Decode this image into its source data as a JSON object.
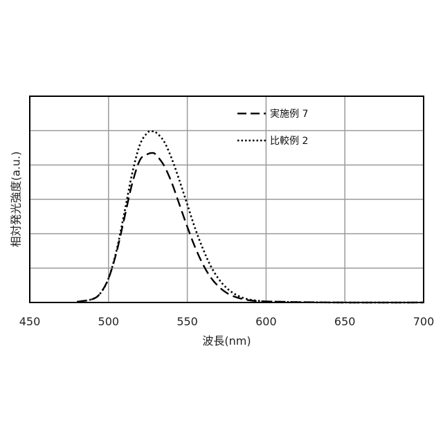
{
  "chart_data": {
    "type": "line",
    "xlabel": "波長(nm)",
    "ylabel": "相対発光強度(a.u.)",
    "xlim": [
      450,
      700
    ],
    "ylim": [
      0,
      6
    ],
    "xticks": [
      450,
      500,
      550,
      600,
      650,
      700
    ],
    "grid": true,
    "legend_position": "top-right",
    "series": [
      {
        "name": "実施例 7",
        "style": "dashed",
        "color": "#000000",
        "x": [
          480,
          490,
          495,
          500,
          505,
          510,
          515,
          520,
          525,
          528,
          530,
          535,
          540,
          545,
          550,
          555,
          560,
          565,
          570,
          575,
          580,
          585,
          590,
          595,
          600,
          610,
          620,
          650,
          700
        ],
        "y": [
          0.02,
          0.1,
          0.28,
          0.7,
          1.45,
          2.45,
          3.45,
          4.15,
          4.32,
          4.35,
          4.3,
          4.0,
          3.5,
          2.85,
          2.2,
          1.6,
          1.1,
          0.72,
          0.46,
          0.28,
          0.17,
          0.1,
          0.06,
          0.04,
          0.03,
          0.02,
          0.01,
          0.0,
          0.0
        ]
      },
      {
        "name": "比較例 2",
        "style": "dotted",
        "color": "#000000",
        "x": [
          480,
          490,
          495,
          500,
          505,
          510,
          515,
          520,
          525,
          528,
          530,
          535,
          540,
          545,
          550,
          555,
          560,
          565,
          570,
          575,
          580,
          585,
          590,
          595,
          600,
          610,
          620,
          650,
          700
        ],
        "y": [
          0.02,
          0.1,
          0.28,
          0.7,
          1.5,
          2.6,
          3.75,
          4.6,
          4.95,
          4.98,
          4.95,
          4.7,
          4.2,
          3.55,
          2.85,
          2.15,
          1.55,
          1.05,
          0.68,
          0.42,
          0.25,
          0.14,
          0.08,
          0.05,
          0.03,
          0.02,
          0.01,
          0.0,
          0.0
        ]
      }
    ]
  }
}
